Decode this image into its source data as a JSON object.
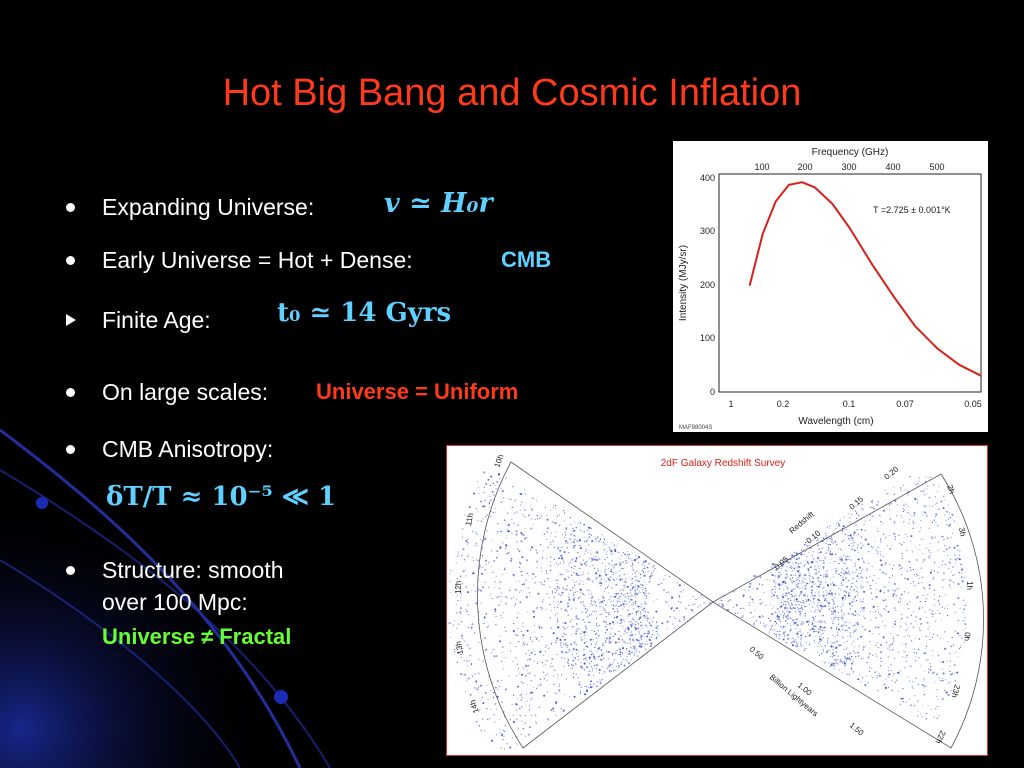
{
  "slide": {
    "title": "Hot Big Bang and Cosmic Inflation",
    "bullets": {
      "b1_text": "Expanding Universe:",
      "b1_math": "v ≃ H₀r",
      "b2_text": "Early Universe = Hot + Dense:",
      "b2_highlight": "CMB",
      "b3_text": "Finite Age:",
      "b3_math": "t₀ ≃ 14 Gyrs",
      "b4_text": "On large scales:",
      "b4_highlight": "Universe = Uniform",
      "b5_text": "CMB Anisotropy:",
      "b5_math": "δT/T ≈ 10⁻⁵ ≪ 1",
      "b6_line1": "Structure: smooth",
      "b6_line2": "over 100 Mpc:",
      "b6_highlight": "Universe ≠ Fractal"
    }
  },
  "cmb_figure": {
    "top_axis_label": "Frequency (GHz)",
    "top_ticks": [
      "100",
      "200",
      "300",
      "400",
      "500"
    ],
    "y_label": "Intensity (MJy/sr)",
    "y_ticks": [
      "400",
      "300",
      "200",
      "100",
      "0"
    ],
    "x_label": "Wavelength (cm)",
    "x_ticks": [
      "1",
      "0.2",
      "0.1",
      "0.07",
      "0.05"
    ],
    "annotation": "T =2.725 ± 0.001°K",
    "footer": "MAF98004S",
    "line_color": "#d9201a",
    "chart_data": {
      "type": "line",
      "title": "",
      "xlabel": "Wavelength (cm)",
      "ylabel": "Intensity (MJy/sr)",
      "x_axis": "frequency (GHz)",
      "ylim": [
        0,
        400
      ],
      "x": [
        70,
        100,
        130,
        160,
        190,
        220,
        260,
        300,
        350,
        400,
        450,
        500,
        550,
        600
      ],
      "y": [
        195,
        290,
        350,
        380,
        385,
        375,
        345,
        300,
        235,
        175,
        120,
        80,
        50,
        30
      ]
    }
  },
  "galaxy_figure": {
    "title": "2dF Galaxy Redshift Survey",
    "redshift_label": "Redshift",
    "redshift_ticks": [
      "0.05",
      "0.10",
      "0.15",
      "0.20"
    ],
    "distance_label": "Billion Lightyears",
    "distance_ticks": [
      "0.50",
      "1.00",
      "1.50"
    ],
    "hours_left": [
      "10h",
      "11h",
      "12h",
      "13h",
      "14h"
    ],
    "hours_right": [
      "3h",
      "2h",
      "1h",
      "0h",
      "23h",
      "22h"
    ],
    "dot_color": "#2b3fd0"
  }
}
